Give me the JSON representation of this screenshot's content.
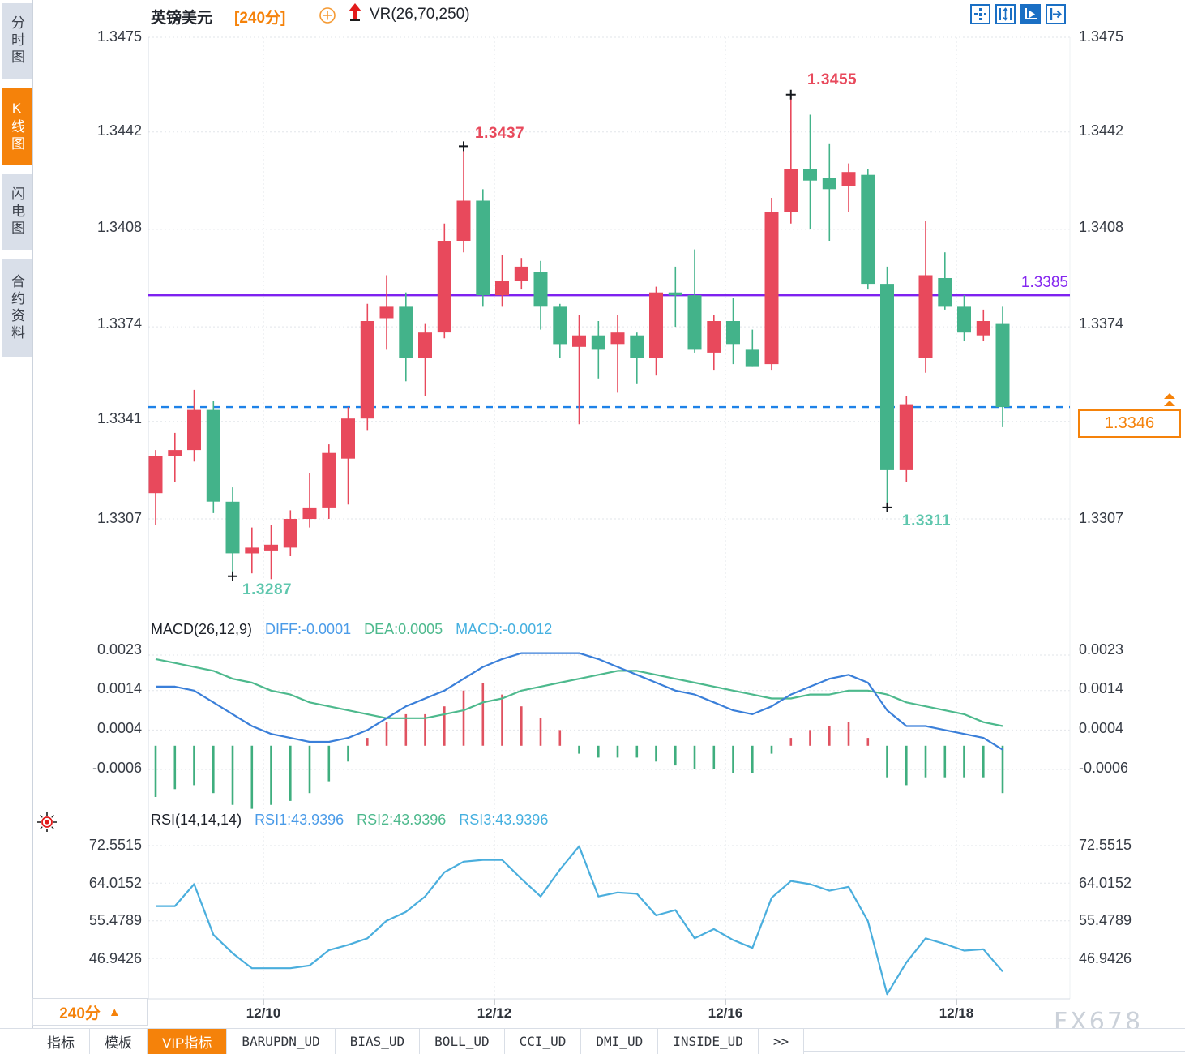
{
  "header": {
    "symbol": "英镑美元",
    "period": "[240分]",
    "vr_indicator": "VR(26,70,250)"
  },
  "sidebar": {
    "items": [
      {
        "label": "分时图",
        "active": false
      },
      {
        "label": "K线图",
        "active": true
      },
      {
        "label": "闪电图",
        "active": false
      },
      {
        "label": "合约资料",
        "active": false
      }
    ]
  },
  "toolbar_icons": [
    "pan-move-icon",
    "axis-scale-icon",
    "axis-play-icon",
    "shift-right-icon"
  ],
  "price_axis": {
    "labels": [
      "1.3475",
      "1.3442",
      "1.3408",
      "1.3374",
      "1.3341",
      "1.3307"
    ]
  },
  "macd_axis": {
    "labels": [
      "0.0023",
      "0.0014",
      "0.0004",
      "-0.0006"
    ]
  },
  "rsi_axis": {
    "labels": [
      "72.5515",
      "64.0152",
      "55.4789",
      "46.9426"
    ]
  },
  "x_axis": {
    "labels": [
      "12/10",
      "12/12",
      "12/16",
      "12/18"
    ]
  },
  "annotations": {
    "high1": "1.3437",
    "high2": "1.3455",
    "low1": "1.3287",
    "low2": "1.3311",
    "hline_label": "1.3385",
    "last_price_label": "1.3346"
  },
  "macd_header": {
    "title": "MACD(26,12,9)",
    "diff": "DIFF:-0.0001",
    "dea": "DEA:0.0005",
    "macd": "MACD:-0.0012"
  },
  "rsi_header": {
    "title": "RSI(14,14,14)",
    "rsi1": "RSI1:43.9396",
    "rsi2": "RSI2:43.9396",
    "rsi3": "RSI3:43.9396"
  },
  "bottom": {
    "period_label": "240分",
    "tabs": [
      {
        "label": "指标",
        "active": false,
        "mono": false
      },
      {
        "label": "模板",
        "active": false,
        "mono": false
      },
      {
        "label": "VIP指标",
        "active": true,
        "mono": false
      },
      {
        "label": "BARUPDN_UD",
        "active": false,
        "mono": true
      },
      {
        "label": "BIAS_UD",
        "active": false,
        "mono": true
      },
      {
        "label": "BOLL_UD",
        "active": false,
        "mono": true
      },
      {
        "label": "CCI_UD",
        "active": false,
        "mono": true
      },
      {
        "label": "DMI_UD",
        "active": false,
        "mono": true
      },
      {
        "label": "INSIDE_UD",
        "active": false,
        "mono": true
      },
      {
        "label": ">>",
        "active": false,
        "mono": true
      }
    ]
  },
  "watermark": "FX678",
  "colors": {
    "accent_orange": "#f5820a",
    "candle_up": "#e8495c",
    "candle_down": "#43b38a",
    "purple_line": "#7e22f0",
    "dashed_blue": "#1e82e8",
    "ann_high": "#e8495c",
    "ann_low": "#5fc7ae",
    "macd_diff": "#3a7fd9",
    "macd_dea": "#4db98d",
    "macd_hist_pos": "#e05260",
    "macd_hist_neg": "#3fae7e",
    "rsi_line": "#4aaedd",
    "grid": "#e2e5ea",
    "toolbar_blue": "#1a6fc4",
    "marker_black": "#15181d"
  },
  "chart_data": {
    "type": "candlestick",
    "title": "英镑美元 240分 K线图",
    "x_tick_labels": [
      "12/10",
      "12/12",
      "12/16",
      "12/18"
    ],
    "price_ticks": [
      1.3475,
      1.3442,
      1.3408,
      1.3374,
      1.3341,
      1.3307
    ],
    "hline_purple": 1.3385,
    "hline_dashed": 1.3346,
    "last_price": 1.3346,
    "marked_high": [
      17,
      34
    ],
    "marked_low": [
      5,
      39
    ],
    "candles_ohlc": [
      [
        1.3316,
        1.3331,
        1.3305,
        1.3329
      ],
      [
        1.3329,
        1.3337,
        1.332,
        1.3331
      ],
      [
        1.3331,
        1.3352,
        1.3327,
        1.3345
      ],
      [
        1.3345,
        1.3348,
        1.3309,
        1.3313
      ],
      [
        1.3313,
        1.3318,
        1.3287,
        1.3295
      ],
      [
        1.3295,
        1.3304,
        1.3288,
        1.3297
      ],
      [
        1.3296,
        1.3305,
        1.3286,
        1.3298
      ],
      [
        1.3297,
        1.331,
        1.3294,
        1.3307
      ],
      [
        1.3307,
        1.3323,
        1.3304,
        1.3311
      ],
      [
        1.3311,
        1.3333,
        1.3307,
        1.333
      ],
      [
        1.3328,
        1.3346,
        1.3312,
        1.3342
      ],
      [
        1.3342,
        1.3382,
        1.3338,
        1.3376
      ],
      [
        1.3377,
        1.3392,
        1.3366,
        1.3381
      ],
      [
        1.3381,
        1.3386,
        1.3355,
        1.3363
      ],
      [
        1.3363,
        1.3375,
        1.335,
        1.3372
      ],
      [
        1.3372,
        1.341,
        1.337,
        1.3404
      ],
      [
        1.3404,
        1.3437,
        1.34,
        1.3418
      ],
      [
        1.3418,
        1.3422,
        1.3381,
        1.3385
      ],
      [
        1.3385,
        1.3399,
        1.3381,
        1.339
      ],
      [
        1.339,
        1.3398,
        1.3387,
        1.3395
      ],
      [
        1.3393,
        1.3397,
        1.3373,
        1.3381
      ],
      [
        1.3381,
        1.3382,
        1.3363,
        1.3368
      ],
      [
        1.3367,
        1.3378,
        1.334,
        1.3371
      ],
      [
        1.3371,
        1.3376,
        1.3356,
        1.3366
      ],
      [
        1.3368,
        1.3378,
        1.3351,
        1.3372
      ],
      [
        1.3371,
        1.3372,
        1.3354,
        1.3363
      ],
      [
        1.3363,
        1.3388,
        1.3357,
        1.3386
      ],
      [
        1.3386,
        1.3395,
        1.3374,
        1.3385
      ],
      [
        1.3385,
        1.3401,
        1.3365,
        1.3366
      ],
      [
        1.3365,
        1.3378,
        1.3359,
        1.3376
      ],
      [
        1.3376,
        1.3384,
        1.3361,
        1.3368
      ],
      [
        1.3366,
        1.3373,
        1.336,
        1.336
      ],
      [
        1.3361,
        1.3419,
        1.3359,
        1.3414
      ],
      [
        1.3414,
        1.3455,
        1.341,
        1.3429
      ],
      [
        1.3429,
        1.3448,
        1.3408,
        1.3425
      ],
      [
        1.3426,
        1.3438,
        1.3404,
        1.3422
      ],
      [
        1.3423,
        1.3431,
        1.3414,
        1.3428
      ],
      [
        1.3427,
        1.3429,
        1.3387,
        1.3389
      ],
      [
        1.3389,
        1.3395,
        1.3311,
        1.3324
      ],
      [
        1.3324,
        1.335,
        1.332,
        1.3347
      ],
      [
        1.3363,
        1.3411,
        1.3358,
        1.3392
      ],
      [
        1.3391,
        1.34,
        1.338,
        1.3381
      ],
      [
        1.3381,
        1.3385,
        1.3369,
        1.3372
      ],
      [
        1.3371,
        1.338,
        1.3369,
        1.3376
      ],
      [
        1.3375,
        1.3381,
        1.3339,
        1.3346
      ]
    ],
    "macd": {
      "ticks": [
        0.0023,
        0.0014,
        0.0004,
        -0.0006
      ],
      "hist": [
        -0.0013,
        -0.0011,
        -0.001,
        -0.0012,
        -0.0015,
        -0.0016,
        -0.0015,
        -0.0014,
        -0.0012,
        -0.0009,
        -0.0004,
        0.0002,
        0.0006,
        0.0008,
        0.0008,
        0.001,
        0.0014,
        0.0016,
        0.0013,
        0.001,
        0.0007,
        0.0004,
        -0.0002,
        -0.0003,
        -0.0003,
        -0.0003,
        -0.0004,
        -0.0005,
        -0.0006,
        -0.0006,
        -0.0007,
        -0.0007,
        -0.0002,
        0.0002,
        0.0004,
        0.0005,
        0.0006,
        0.0002,
        -0.0008,
        -0.001,
        -0.0008,
        -0.0008,
        -0.0008,
        -0.0008,
        -0.0012
      ],
      "diff": [
        0.0015,
        0.0015,
        0.0014,
        0.0011,
        0.0008,
        0.0005,
        0.0003,
        0.0002,
        0.0001,
        0.0001,
        0.0002,
        0.0004,
        0.0007,
        0.001,
        0.0012,
        0.0014,
        0.0017,
        0.002,
        0.0022,
        0.00235,
        0.00235,
        0.00235,
        0.00235,
        0.0022,
        0.002,
        0.0018,
        0.0016,
        0.0014,
        0.0013,
        0.0011,
        0.0009,
        0.0008,
        0.001,
        0.0013,
        0.0015,
        0.0017,
        0.0018,
        0.0016,
        0.0009,
        0.0005,
        0.0005,
        0.0004,
        0.0003,
        0.0002,
        -0.0001
      ],
      "dea": [
        0.0022,
        0.0021,
        0.002,
        0.0019,
        0.0017,
        0.0016,
        0.0014,
        0.0013,
        0.0011,
        0.001,
        0.0009,
        0.0008,
        0.0007,
        0.0007,
        0.0007,
        0.0008,
        0.0009,
        0.0011,
        0.0012,
        0.0014,
        0.0015,
        0.0016,
        0.0017,
        0.0018,
        0.0019,
        0.0019,
        0.0018,
        0.0017,
        0.0016,
        0.0015,
        0.0014,
        0.0013,
        0.0012,
        0.0012,
        0.0013,
        0.0013,
        0.0014,
        0.0014,
        0.0013,
        0.0011,
        0.001,
        0.0009,
        0.0008,
        0.0006,
        0.0005
      ]
    },
    "rsi": {
      "ticks": [
        72.5515,
        64.0152,
        55.4789,
        46.9426
      ],
      "values": [
        58.8,
        58.8,
        63.8,
        52.3,
        48.1,
        44.7,
        44.7,
        44.7,
        45.3,
        48.8,
        50.0,
        51.5,
        55.5,
        57.5,
        61.0,
        66.5,
        68.9,
        69.3,
        69.3,
        65.0,
        61.0,
        67.1,
        72.4,
        61.0,
        61.9,
        61.6,
        56.7,
        57.9,
        51.5,
        53.6,
        51.1,
        49.3,
        60.7,
        64.5,
        63.8,
        62.3,
        63.2,
        55.4,
        38.8,
        46.0,
        51.5,
        50.2,
        48.7,
        49.0,
        43.9396
      ]
    }
  }
}
